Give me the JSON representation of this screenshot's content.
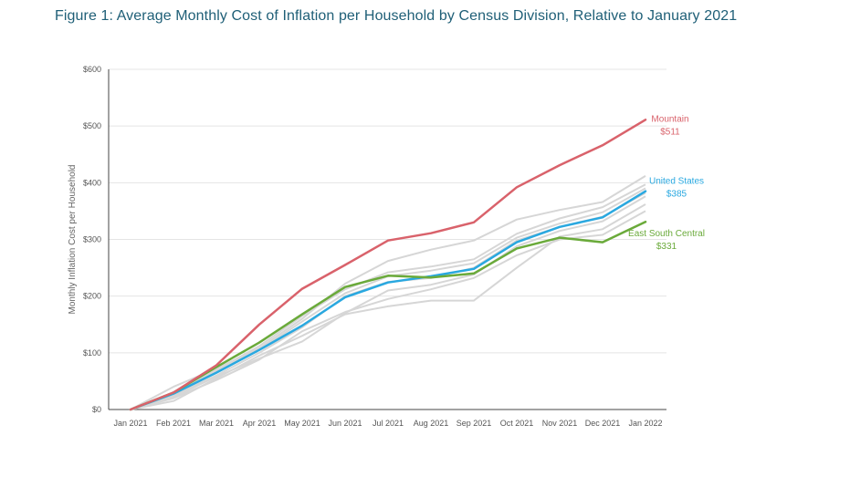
{
  "figure": {
    "title": "Figure 1: Average Monthly Cost of Inflation per Household by Census Division, Relative to January 2021"
  },
  "chart_data": {
    "type": "line",
    "ylabel": "Monthly Inflation Cost per Household",
    "xlabel": "",
    "ylim": [
      0,
      600
    ],
    "y_ticks": [
      0,
      100,
      200,
      300,
      400,
      500,
      600
    ],
    "y_tick_labels": [
      "$0",
      "$100",
      "$200",
      "$300",
      "$400",
      "$500",
      "$600"
    ],
    "grid": "horizontal",
    "categories": [
      "Jan 2021",
      "Feb 2021",
      "Mar 2021",
      "Apr 2021",
      "May 2021",
      "Jun 2021",
      "Jul 2021",
      "Aug 2021",
      "Sep 2021",
      "Oct 2021",
      "Nov 2021",
      "Dec 2021",
      "Jan 2022"
    ],
    "colors": {
      "highlight_mountain": "#d9626b",
      "highlight_us": "#29a8e0",
      "highlight_esc": "#6aaa3a",
      "background": "#d6d6d6"
    },
    "background_series": [
      {
        "values": [
          0,
          40,
          72,
          108,
          160,
          222,
          262,
          282,
          298,
          335,
          352,
          366,
          412
        ]
      },
      {
        "values": [
          0,
          30,
          70,
          112,
          165,
          212,
          242,
          252,
          265,
          310,
          337,
          357,
          397
        ]
      },
      {
        "values": [
          0,
          28,
          68,
          105,
          155,
          205,
          235,
          245,
          258,
          303,
          328,
          348,
          390
        ]
      },
      {
        "values": [
          0,
          25,
          60,
          100,
          145,
          200,
          225,
          232,
          250,
          298,
          322,
          340,
          382
        ]
      },
      {
        "values": [
          0,
          22,
          58,
          90,
          120,
          170,
          210,
          220,
          238,
          288,
          315,
          332,
          376
        ]
      },
      {
        "values": [
          0,
          15,
          55,
          95,
          130,
          168,
          182,
          192,
          192,
          250,
          305,
          318,
          362
        ]
      },
      {
        "values": [
          0,
          20,
          52,
          88,
          138,
          172,
          195,
          212,
          232,
          272,
          300,
          308,
          350
        ]
      }
    ],
    "series": [
      {
        "name": "United States",
        "color": "#29a8e0",
        "values": [
          0,
          28,
          65,
          105,
          148,
          198,
          224,
          235,
          248,
          295,
          322,
          339,
          385
        ]
      },
      {
        "name": "East South Central",
        "color": "#6aaa3a",
        "values": [
          0,
          30,
          75,
          118,
          168,
          216,
          236,
          233,
          240,
          284,
          303,
          295,
          331
        ]
      },
      {
        "name": "Mountain",
        "color": "#d9626b",
        "values": [
          0,
          30,
          78,
          150,
          213,
          255,
          298,
          311,
          330,
          392,
          431,
          466,
          511
        ]
      }
    ],
    "annotations": [
      {
        "series": "Mountain",
        "name": "Mountain",
        "value_label": "$511",
        "color": "#d9626b"
      },
      {
        "series": "United States",
        "name": "United States",
        "value_label": "$385",
        "color": "#29a8e0"
      },
      {
        "series": "East South Central",
        "name": "East South Central",
        "value_label": "$331",
        "color": "#6aaa3a"
      }
    ]
  }
}
